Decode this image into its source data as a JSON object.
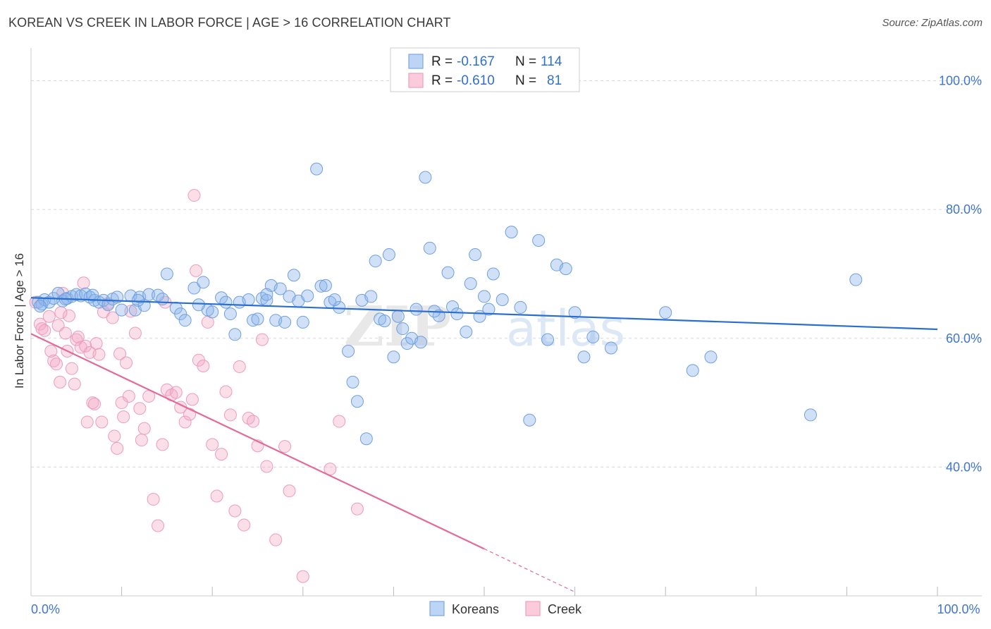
{
  "header": {
    "title": "KOREAN VS CREEK IN LABOR FORCE | AGE > 16 CORRELATION CHART",
    "source": "Source: ZipAtlas.com"
  },
  "colors": {
    "blue": "#8ab4ec",
    "blue_line": "#2a6fd0",
    "pink": "#f2a9c2",
    "pink_line": "#e46a97",
    "tick_text": "#3f75d1",
    "grid": "#d8d8d8"
  },
  "legend": {
    "rows": [
      {
        "r_label": "R =",
        "r_value": "-0.167",
        "n_label": "N =",
        "n_value": "114"
      },
      {
        "r_label": "R =",
        "r_value": "-0.610",
        "n_label": "N =",
        "n_value": "81"
      }
    ]
  },
  "watermark": {
    "zip": "ZIP",
    "atlas": "atlas"
  },
  "chart_data": {
    "type": "scatter",
    "title": "KOREAN VS CREEK IN LABOR FORCE | AGE > 16 CORRELATION CHART",
    "xlabel": "",
    "ylabel": "In Labor Force | Age > 16",
    "xlim": [
      0,
      100
    ],
    "ylim": [
      20,
      104
    ],
    "x_tick_labels": [
      {
        "value": 0,
        "label": "0.0%"
      },
      {
        "value": 100,
        "label": "100.0%"
      }
    ],
    "y_tick_labels": [
      {
        "value": 40,
        "label": "40.0%"
      },
      {
        "value": 60,
        "label": "60.0%"
      },
      {
        "value": 80,
        "label": "80.0%"
      },
      {
        "value": 100,
        "label": "100.0%"
      }
    ],
    "grid": true,
    "legend_position": "top-center",
    "series": [
      {
        "name": "Koreans",
        "color": "#8ab4ec",
        "r": -0.167,
        "n": 114,
        "trend": {
          "x": [
            0,
            100
          ],
          "y": [
            66.3,
            61.4
          ]
        },
        "points": [
          [
            0.8,
            65.6
          ],
          [
            1.2,
            65.3
          ],
          [
            1.5,
            66
          ],
          [
            2,
            65.6
          ],
          [
            2.5,
            66.2
          ],
          [
            3,
            67
          ],
          [
            3.5,
            65.8
          ],
          [
            4,
            66.2
          ],
          [
            4.5,
            66.5
          ],
          [
            5,
            66.8
          ],
          [
            5.5,
            66.6
          ],
          [
            6,
            66.9
          ],
          [
            6.5,
            66.4
          ],
          [
            7,
            65.9
          ],
          [
            7.5,
            65.6
          ],
          [
            8,
            65.9
          ],
          [
            8.5,
            65.2
          ],
          [
            9,
            66.1
          ],
          [
            9.5,
            66.4
          ],
          [
            10,
            64.4
          ],
          [
            11,
            66.6
          ],
          [
            11.5,
            64.4
          ],
          [
            12,
            66.4
          ],
          [
            12.5,
            65.1
          ],
          [
            13,
            66.8
          ],
          [
            14,
            66.7
          ],
          [
            14.5,
            66.1
          ],
          [
            15,
            70
          ],
          [
            16,
            64.7
          ],
          [
            16.5,
            63.8
          ],
          [
            17,
            62.8
          ],
          [
            18,
            67.8
          ],
          [
            19,
            68.7
          ],
          [
            19.5,
            64.4
          ],
          [
            20,
            64.1
          ],
          [
            21,
            66.3
          ],
          [
            21.5,
            65.6
          ],
          [
            22,
            63.8
          ],
          [
            22.5,
            60.6
          ],
          [
            23,
            65.6
          ],
          [
            24,
            66
          ],
          [
            24.5,
            62.8
          ],
          [
            25,
            63
          ],
          [
            25.5,
            66.2
          ],
          [
            26,
            65.9
          ],
          [
            26.5,
            68.2
          ],
          [
            27,
            62.8
          ],
          [
            27.5,
            67.7
          ],
          [
            28,
            62.5
          ],
          [
            28.5,
            66.5
          ],
          [
            29,
            69.8
          ],
          [
            29.5,
            65.8
          ],
          [
            30,
            62.5
          ],
          [
            30.5,
            66.6
          ],
          [
            31.5,
            86.3
          ],
          [
            32,
            68.1
          ],
          [
            32.5,
            68.2
          ],
          [
            33,
            65.6
          ],
          [
            34,
            64.8
          ],
          [
            35,
            58
          ],
          [
            35.5,
            53.2
          ],
          [
            36,
            50.2
          ],
          [
            36.5,
            65.9
          ],
          [
            37,
            44.4
          ],
          [
            37.5,
            66.5
          ],
          [
            38,
            72
          ],
          [
            38.5,
            63
          ],
          [
            39,
            62.7
          ],
          [
            39.5,
            73
          ],
          [
            40,
            57.1
          ],
          [
            40.5,
            63.4
          ],
          [
            41,
            61.5
          ],
          [
            41.5,
            59.2
          ],
          [
            42,
            60
          ],
          [
            42.5,
            64.5
          ],
          [
            43,
            59.4
          ],
          [
            43.5,
            85
          ],
          [
            44,
            74
          ],
          [
            45,
            63.5
          ],
          [
            46,
            70.2
          ],
          [
            46.5,
            64.9
          ],
          [
            47,
            63.8
          ],
          [
            48,
            61
          ],
          [
            48.5,
            68.5
          ],
          [
            49,
            73
          ],
          [
            49.5,
            63.4
          ],
          [
            50,
            66.5
          ],
          [
            50.5,
            64.5
          ],
          [
            51,
            70
          ],
          [
            52,
            66
          ],
          [
            53,
            76.5
          ],
          [
            54,
            64.8
          ],
          [
            55,
            47.3
          ],
          [
            56,
            75.2
          ],
          [
            57,
            59.8
          ],
          [
            58,
            71.4
          ],
          [
            59,
            70.8
          ],
          [
            60,
            64
          ],
          [
            61,
            57.1
          ],
          [
            62,
            60.2
          ],
          [
            64,
            58.5
          ],
          [
            70,
            64
          ],
          [
            73,
            55
          ],
          [
            75,
            57.1
          ],
          [
            86,
            48.1
          ],
          [
            91,
            69.1
          ],
          [
            1,
            65
          ],
          [
            3.8,
            66.1
          ],
          [
            6.8,
            66.7
          ],
          [
            11.8,
            65.9
          ],
          [
            18.5,
            65.2
          ],
          [
            26,
            66.8
          ],
          [
            33.5,
            66
          ],
          [
            44.5,
            64.2
          ]
        ]
      },
      {
        "name": "Creek",
        "color": "#f2a9c2",
        "r": -0.61,
        "n": 81,
        "trend": {
          "x": [
            0,
            50
          ],
          "y": [
            60.7,
            27.3
          ]
        },
        "trend_dashed": {
          "x": [
            50,
            60
          ],
          "y": [
            27.3,
            20.6
          ]
        },
        "points": [
          [
            0.5,
            65.6
          ],
          [
            1,
            62.2
          ],
          [
            1.2,
            61.5
          ],
          [
            1.5,
            61.2
          ],
          [
            2,
            63.4
          ],
          [
            2.2,
            58
          ],
          [
            2.5,
            56.5
          ],
          [
            2.8,
            56
          ],
          [
            3,
            62
          ],
          [
            3.2,
            53.2
          ],
          [
            3.5,
            67
          ],
          [
            3.8,
            60.8
          ],
          [
            4,
            58
          ],
          [
            4.2,
            63.5
          ],
          [
            4.5,
            55.3
          ],
          [
            4.8,
            52.9
          ],
          [
            5,
            59.8
          ],
          [
            5.2,
            60.2
          ],
          [
            5.5,
            58.6
          ],
          [
            5.8,
            68.6
          ],
          [
            6,
            58.8
          ],
          [
            6.2,
            47
          ],
          [
            6.5,
            57.8
          ],
          [
            6.8,
            50
          ],
          [
            7,
            49.8
          ],
          [
            7.2,
            59.2
          ],
          [
            7.5,
            57.5
          ],
          [
            7.8,
            47
          ],
          [
            8,
            64.1
          ],
          [
            8.5,
            65.4
          ],
          [
            9,
            63.2
          ],
          [
            9.2,
            44.8
          ],
          [
            9.5,
            42.9
          ],
          [
            9.8,
            57.6
          ],
          [
            10,
            50
          ],
          [
            10.2,
            47.8
          ],
          [
            10.5,
            56.2
          ],
          [
            11,
            64.2
          ],
          [
            11.5,
            60.8
          ],
          [
            12,
            49.1
          ],
          [
            12.5,
            46
          ],
          [
            13,
            51
          ],
          [
            13.5,
            35
          ],
          [
            14,
            30.9
          ],
          [
            14.5,
            43.5
          ],
          [
            15,
            52
          ],
          [
            15.5,
            51.2
          ],
          [
            16,
            51.6
          ],
          [
            16.5,
            49.3
          ],
          [
            17,
            47
          ],
          [
            17.5,
            48.2
          ],
          [
            18,
            82.2
          ],
          [
            18.2,
            70.5
          ],
          [
            18.5,
            56.6
          ],
          [
            19,
            55.7
          ],
          [
            19.5,
            62.5
          ],
          [
            20,
            43.5
          ],
          [
            20.5,
            35.5
          ],
          [
            21,
            42
          ],
          [
            21.5,
            51.7
          ],
          [
            22,
            48.1
          ],
          [
            22.5,
            33.2
          ],
          [
            23,
            55.6
          ],
          [
            23.5,
            31
          ],
          [
            24,
            47.6
          ],
          [
            24.5,
            47.1
          ],
          [
            25,
            43.3
          ],
          [
            25.5,
            59.8
          ],
          [
            26,
            40.1
          ],
          [
            27,
            28.7
          ],
          [
            28,
            43.2
          ],
          [
            28.5,
            36.3
          ],
          [
            30,
            23
          ],
          [
            33,
            39.7
          ],
          [
            34,
            47.1
          ],
          [
            36,
            33.5
          ],
          [
            10.8,
            51
          ],
          [
            12.2,
            44.2
          ],
          [
            14.8,
            65.6
          ],
          [
            17.8,
            50.5
          ],
          [
            3.3,
            64
          ]
        ]
      }
    ]
  }
}
